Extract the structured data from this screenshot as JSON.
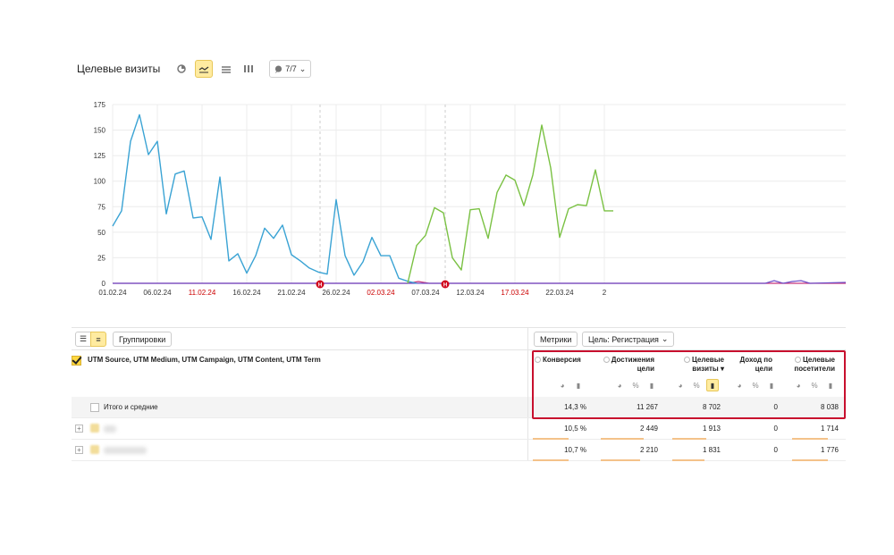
{
  "header": {
    "title": "Целевые визиты",
    "counter_label": "7/7",
    "icons": [
      "pie-icon",
      "line-chart-icon",
      "area-chart-icon",
      "bar-chart-icon",
      "comment-icon"
    ]
  },
  "chart_data": {
    "type": "line",
    "ylim": [
      0,
      175
    ],
    "yticks": [
      "0",
      "25",
      "50",
      "75",
      "100",
      "125",
      "150",
      "175"
    ],
    "xtick_labels": [
      {
        "label": "01.02.24",
        "red": false
      },
      {
        "label": "06.02.24",
        "red": false
      },
      {
        "label": "11.02.24",
        "red": true
      },
      {
        "label": "16.02.24",
        "red": false
      },
      {
        "label": "21.02.24",
        "red": false
      },
      {
        "label": "26.02.24",
        "red": false
      },
      {
        "label": "02.03.24",
        "red": true
      },
      {
        "label": "07.03.24",
        "red": false
      },
      {
        "label": "12.03.24",
        "red": false
      },
      {
        "label": "17.03.24",
        "red": true
      },
      {
        "label": "22.03.24",
        "red": false
      },
      {
        "label": "2",
        "red": false
      }
    ],
    "markers": [
      {
        "day": 23,
        "label": "H"
      },
      {
        "day": 37,
        "label": "H"
      }
    ],
    "series": [
      {
        "color": "#3aa3d4",
        "start_day": 0,
        "values": [
          56,
          71,
          139,
          165,
          126,
          139,
          68,
          107,
          110,
          64,
          65,
          43,
          104,
          22,
          29,
          10,
          27,
          54,
          44,
          57,
          28,
          22,
          15,
          11,
          9,
          82,
          27,
          8,
          21,
          45,
          27,
          27,
          5,
          2,
          0
        ]
      },
      {
        "color": "#7ac143",
        "start_day": 33,
        "values": [
          0,
          37,
          47,
          74,
          69,
          25,
          13,
          72,
          73,
          44,
          89,
          106,
          101,
          76,
          106,
          155,
          113,
          45,
          73,
          77,
          76,
          111,
          71,
          71
        ]
      },
      {
        "color": "#c8347a",
        "start_day": 0,
        "values": "near-zero baseline"
      },
      {
        "color": "#6f4fc8",
        "start_day": 0,
        "values": "near-zero baseline"
      }
    ]
  },
  "toolbar": {
    "groupings_label": "Группировки",
    "metrics_label": "Метрики",
    "goal_label": "Цель: Регистрация"
  },
  "table": {
    "dimension_header": "UTM Source, UTM Medium, UTM Campaign, UTM Content, UTM Term",
    "columns": [
      {
        "line1": "Конверсия",
        "line2": ""
      },
      {
        "line1": "Достижения",
        "line2": "цели"
      },
      {
        "line1": "Целевые",
        "line2": "визиты ▾"
      },
      {
        "line1": "Доход по",
        "line2": "цели"
      },
      {
        "line1": "Целевые",
        "line2": "посетители"
      }
    ],
    "total": {
      "label": "Итого и средние",
      "values": [
        "14,3 %",
        "11 267",
        "8 702",
        "0",
        "8 038"
      ]
    },
    "rows": [
      {
        "values": [
          "10,5 %",
          "2 449",
          "1 913",
          "0",
          "1 714"
        ],
        "bars": [
          0.55,
          0.55,
          0.55,
          0,
          0.55
        ]
      },
      {
        "values": [
          "10,7 %",
          "2 210",
          "1 831",
          "0",
          "1 776"
        ],
        "bars": [
          0.55,
          0.5,
          0.5,
          0,
          0.5
        ]
      }
    ]
  }
}
